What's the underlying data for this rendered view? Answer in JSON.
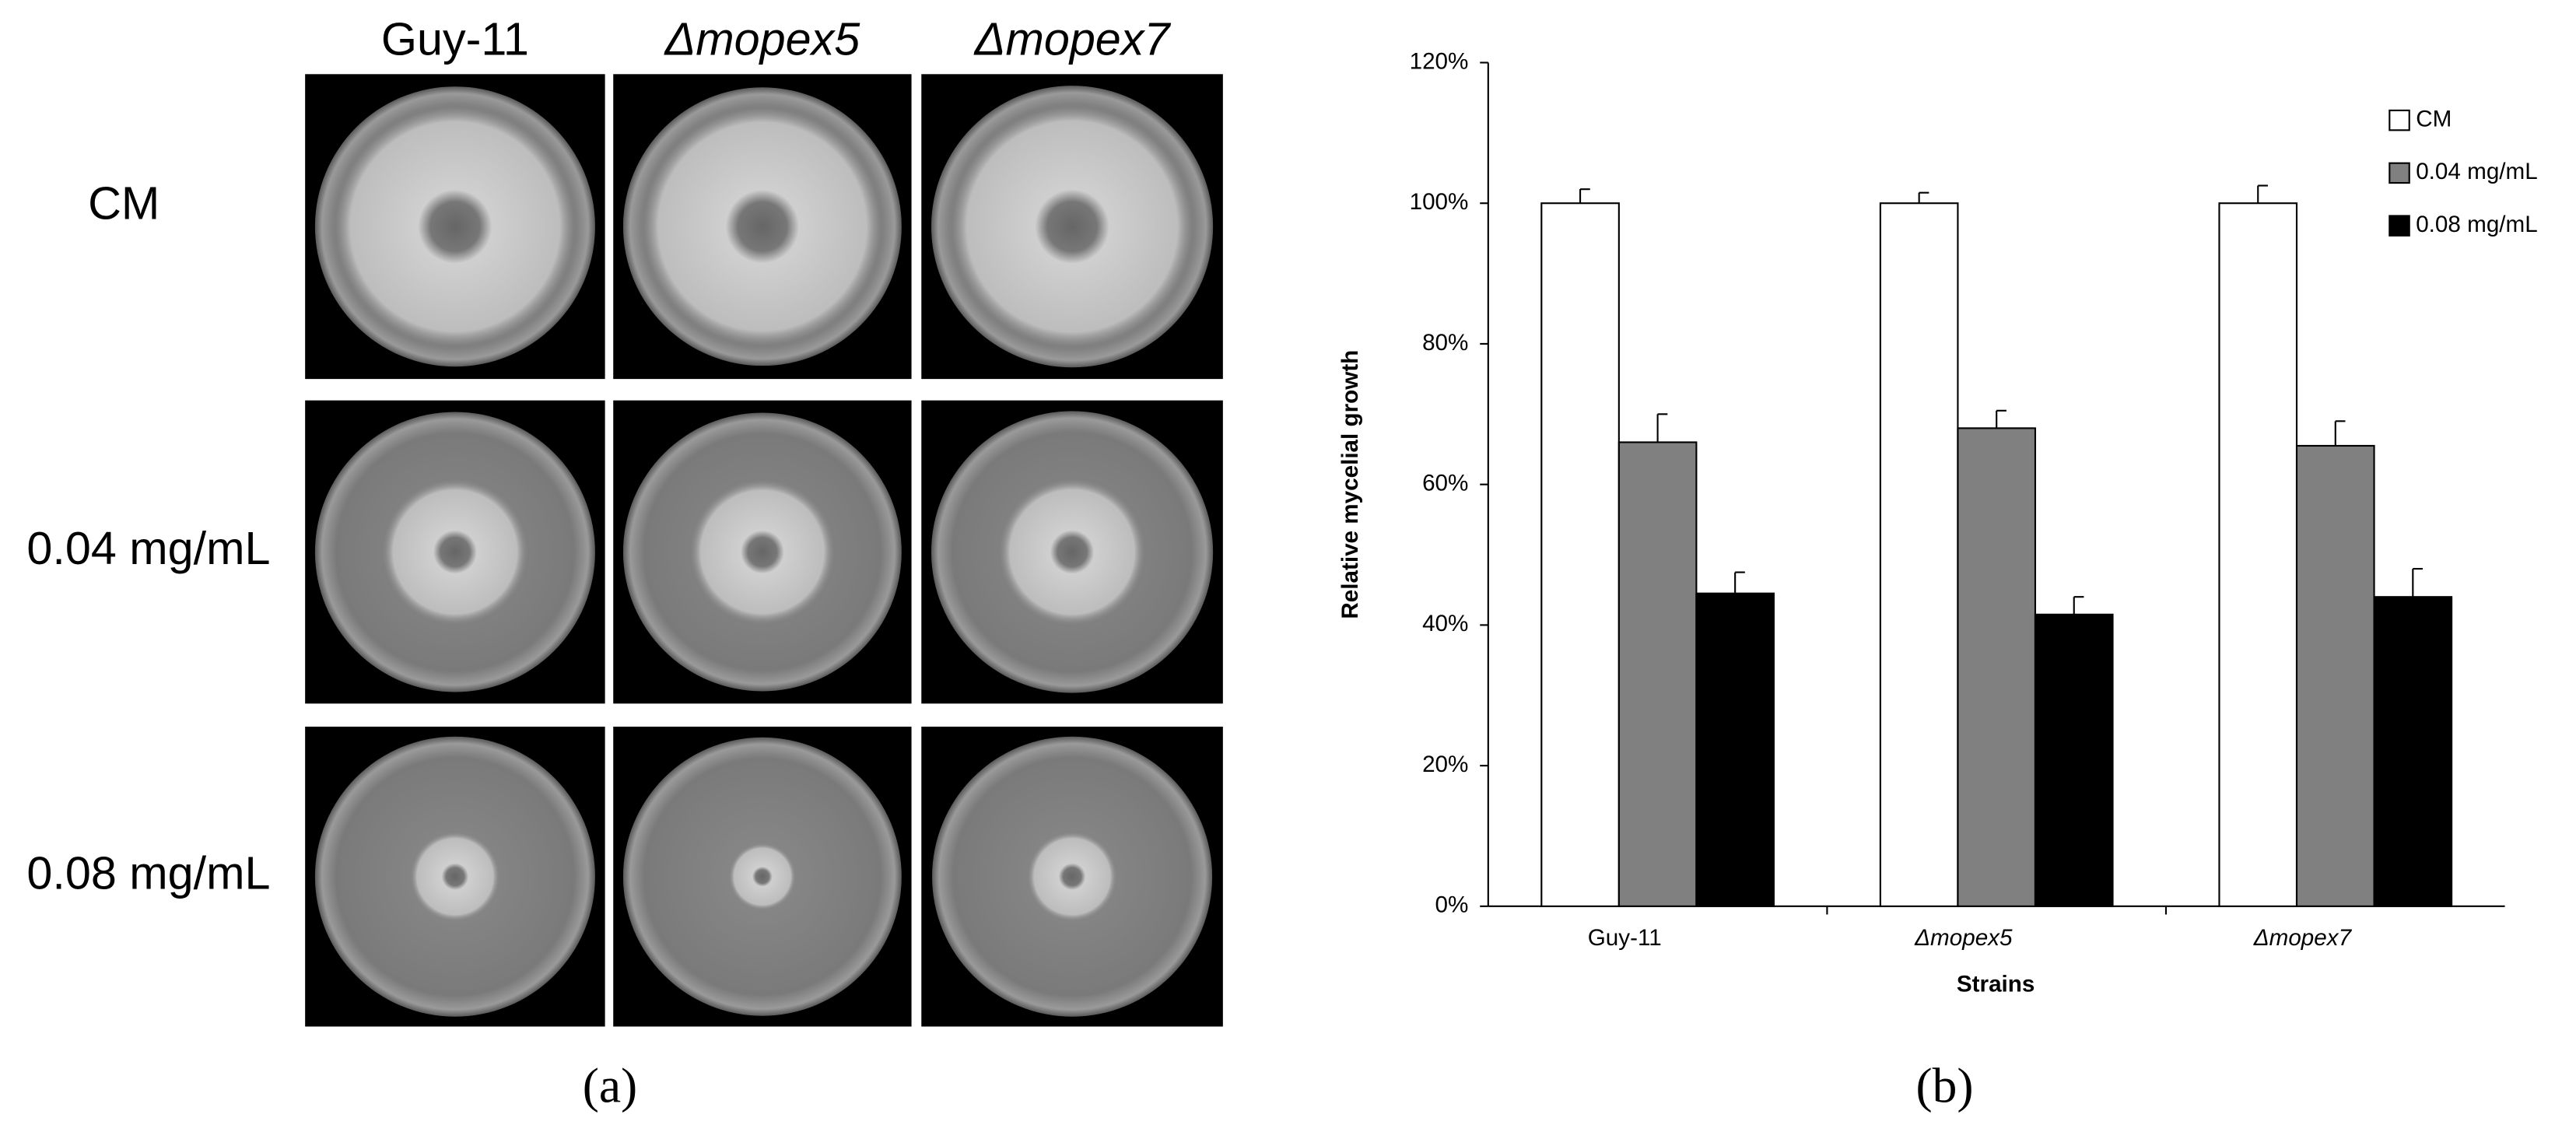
{
  "panel_a": {
    "columns": [
      "Guy-11",
      "Δmopex5",
      "Δmopex7"
    ],
    "rows": [
      "CM",
      "0.04 mg/mL",
      "0.08 mg/mL"
    ],
    "label": "(a)"
  },
  "chart_data": {
    "type": "bar",
    "panel_label": "(b)",
    "x_label": "Strains",
    "y_label": "Relative mycelial growth",
    "categories": [
      "Guy-11",
      "Δmopex5",
      "Δmopex7"
    ],
    "series": [
      {
        "name": "CM",
        "color": "#ffffff",
        "values": [
          100,
          100,
          100
        ],
        "errors": [
          2,
          1.5,
          2.5
        ]
      },
      {
        "name": "0.04 mg/mL",
        "color": "#808080",
        "values": [
          66,
          68,
          65.5
        ],
        "errors": [
          4,
          2.5,
          3.5
        ]
      },
      {
        "name": "0.08 mg/mL",
        "color": "#000000",
        "values": [
          44.5,
          41.5,
          44
        ],
        "errors": [
          3,
          2.5,
          4
        ]
      }
    ],
    "ylim": [
      0,
      120
    ],
    "yticks": [
      {
        "value": 0,
        "label": "0%"
      },
      {
        "value": 20,
        "label": "20%"
      },
      {
        "value": 40,
        "label": "40%"
      },
      {
        "value": 60,
        "label": "60%"
      },
      {
        "value": 80,
        "label": "80%"
      },
      {
        "value": 100,
        "label": "100%"
      },
      {
        "value": 120,
        "label": "120%"
      }
    ],
    "legend": "top-right"
  }
}
